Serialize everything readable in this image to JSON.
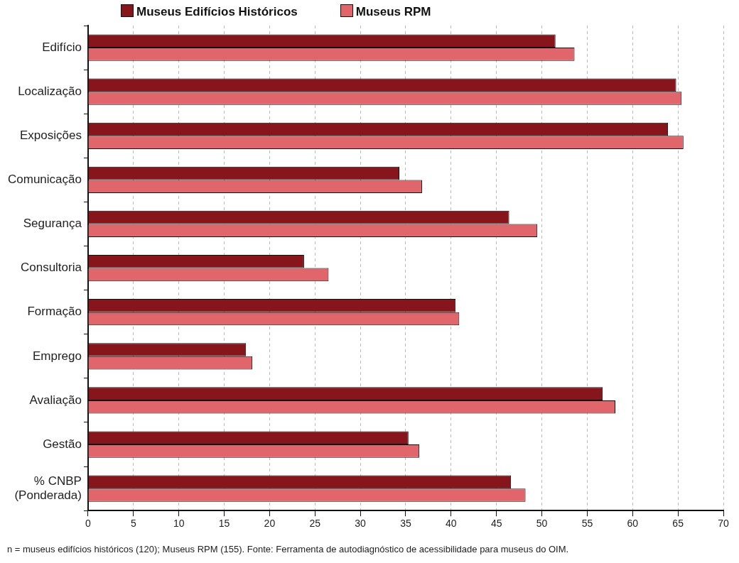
{
  "chart_data": {
    "type": "bar",
    "orientation": "horizontal",
    "categories": [
      "Edifício",
      "Localização",
      "Exposições",
      "Comunicação",
      "Segurança",
      "Consultoria",
      "Formação",
      "Emprego",
      "Avaliação",
      "Gestão",
      "% CNBP (Ponderada)"
    ],
    "series": [
      {
        "name": "Museus Edifícios Históricos",
        "color": "#86161c",
        "values": [
          51.5,
          64.8,
          63.9,
          34.3,
          46.4,
          23.8,
          40.5,
          17.4,
          56.7,
          35.3,
          46.6
        ]
      },
      {
        "name": "Museus RPM",
        "color": "#e0666b",
        "values": [
          53.6,
          65.4,
          65.6,
          36.8,
          49.5,
          26.5,
          40.9,
          18.1,
          58.1,
          36.5,
          48.2
        ]
      }
    ],
    "xlim": [
      0,
      70
    ],
    "xticks": [
      0,
      5,
      10,
      15,
      20,
      25,
      30,
      35,
      40,
      45,
      50,
      55,
      60,
      65,
      70
    ],
    "grid": "x",
    "legend": "top left",
    "annotations": [
      "n = museus edifícios históricos (120); Museus RPM (155). Fonte: Ferramenta de autodiagnóstico de acessibilidade para museus do OIM."
    ]
  }
}
